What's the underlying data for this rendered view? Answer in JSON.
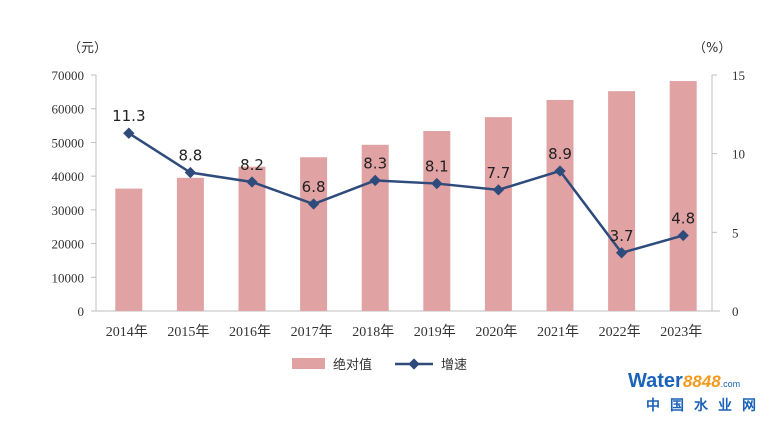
{
  "chart_data": {
    "type": "bar",
    "categories": [
      "2014年",
      "2015年",
      "2016年",
      "2017年",
      "2018年",
      "2019年",
      "2020年",
      "2021年",
      "2022年",
      "2023年"
    ],
    "series": [
      {
        "name": "绝对值",
        "kind": "bar",
        "axis": "left",
        "color": "#e0a2a3",
        "values": [
          36300,
          39500,
          42800,
          45600,
          49300,
          53400,
          57500,
          62600,
          65200,
          68200
        ]
      },
      {
        "name": "增速",
        "kind": "line",
        "axis": "right",
        "color": "#2f4b7c",
        "values": [
          11.3,
          8.8,
          8.2,
          6.8,
          8.3,
          8.1,
          7.7,
          8.9,
          3.7,
          4.8
        ],
        "labels": [
          "11.3",
          "8.8",
          "8.2",
          "6.8",
          "8.3",
          "8.1",
          "7.7",
          "8.9",
          "3.7",
          "4.8"
        ]
      }
    ],
    "left_axis": {
      "unit": "（元）",
      "ylim": [
        0,
        70000
      ],
      "ticks": [
        "0",
        "10000",
        "20000",
        "30000",
        "40000",
        "50000",
        "60000",
        "70000"
      ]
    },
    "right_axis": {
      "unit": "（%）",
      "ylim": [
        0,
        15
      ],
      "ticks": [
        "0",
        "5",
        "10",
        "15"
      ]
    },
    "grid": false,
    "legend_position": "bottom"
  },
  "watermark": {
    "brand": "Water",
    "number": "8848",
    "tld": ".com",
    "tagline": "中国水业网"
  }
}
